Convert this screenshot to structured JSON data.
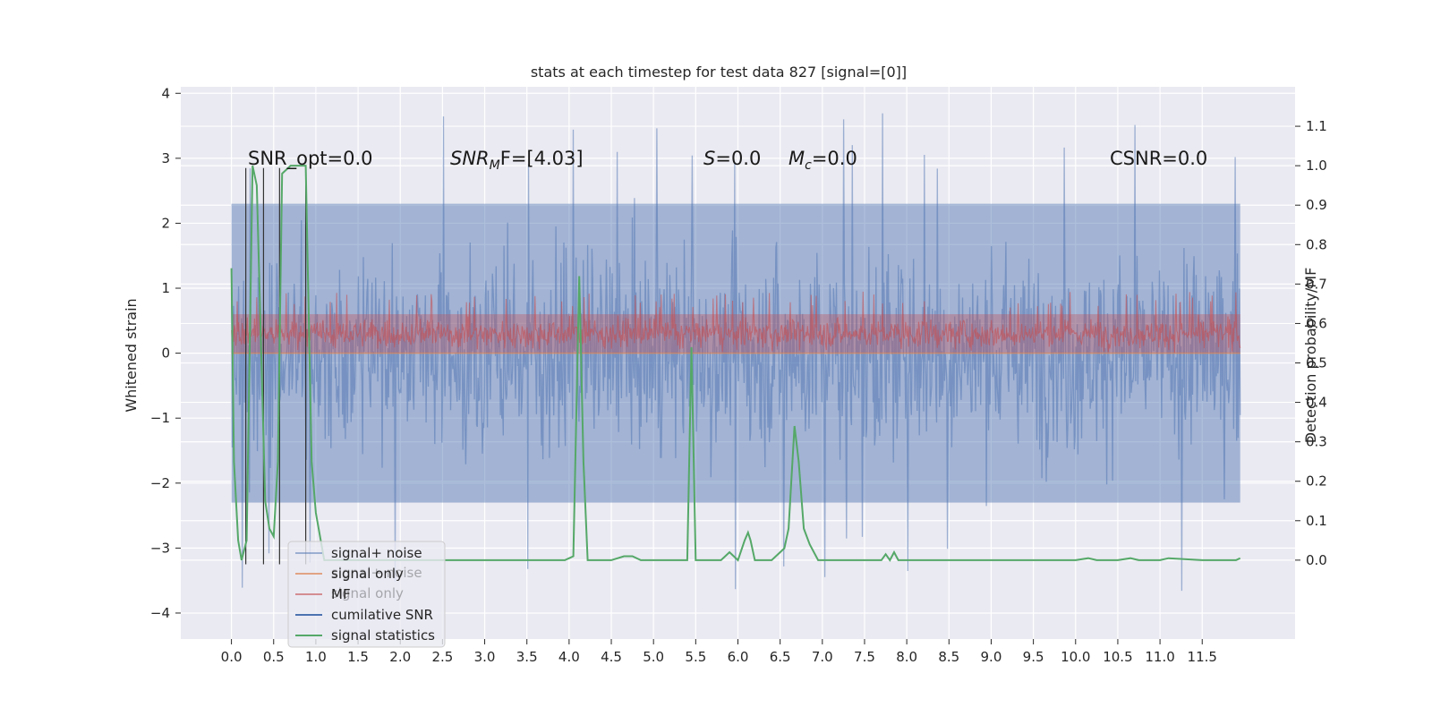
{
  "chart_data": {
    "type": "line",
    "title": "stats at each timestep for test data 827 [signal=[0]]",
    "xlabel": "",
    "ylabel": "Whitened strain",
    "y2label": "Detection probability/MF",
    "xlim": [
      -0.6,
      12.6
    ],
    "ylim": [
      -4.4,
      4.1
    ],
    "y2lim": [
      -0.2,
      1.2
    ],
    "x_ticks": [
      "0.0",
      "0.5",
      "1.0",
      "1.5",
      "2.0",
      "2.5",
      "3.0",
      "3.5",
      "4.0",
      "4.5",
      "5.0",
      "5.5",
      "6.0",
      "6.5",
      "7.0",
      "7.5",
      "8.0",
      "8.5",
      "9.0",
      "9.5",
      "10.0",
      "10.5",
      "11.0",
      "11.5"
    ],
    "y_ticks": [
      "4",
      "3",
      "2",
      "1",
      "0",
      "−1",
      "−2",
      "−3",
      "−4"
    ],
    "y2_ticks": [
      "1.1",
      "1.0",
      "0.9",
      "0.8",
      "0.7",
      "0.6",
      "0.5",
      "0.4",
      "0.3",
      "0.2",
      "0.1",
      "0.0"
    ],
    "grid": true,
    "legend_position": "lower-left",
    "legend": [
      "signal+ noise",
      "signal only",
      "MF",
      "cumilative SNR",
      "signal statistics"
    ],
    "legend_ghost": [
      "signal+ noise",
      "signal only"
    ],
    "colors": {
      "signal_noise": "#4c72b0",
      "signal_only": "#dd8452",
      "mf": "#c44e52",
      "cumulative_snr": "#4c72b0",
      "signal_statistics": "#55a868",
      "background": "#eaeaf2",
      "grid": "#ffffff"
    },
    "annotations": {
      "snr_opt": "SNR_opt=0.0",
      "snr_mf_base": "SNR",
      "snr_mf_sub": "M",
      "snr_mf_tail": "F=[4.03]",
      "s_base": "S",
      "s_tail": "=0.0",
      "mc_base": "M",
      "mc_sub": "c",
      "mc_tail": "=0.0",
      "csnr": "CSNR=0.0"
    },
    "series": [
      {
        "name": "signal+ noise",
        "axis": "left",
        "description_range": [
          -4.1,
          3.75
        ],
        "band": [
          -2.3,
          2.3
        ]
      },
      {
        "name": "MF",
        "axis": "left",
        "band": [
          0.0,
          0.6
        ]
      },
      {
        "name": "cumilative SNR",
        "axis": "left",
        "vertical_x": [
          0.17,
          0.38,
          0.57,
          0.88
        ],
        "range": [
          -3.25,
          2.85
        ]
      },
      {
        "name": "signal statistics",
        "axis": "right",
        "x": [
          0.0,
          0.03,
          0.08,
          0.12,
          0.18,
          0.25,
          0.3,
          0.4,
          0.45,
          0.5,
          0.55,
          0.6,
          0.65,
          0.7,
          0.8,
          0.88,
          0.95,
          1.0,
          1.1,
          1.3,
          2.0,
          3.0,
          3.95,
          4.05,
          4.12,
          4.17,
          4.22,
          4.3,
          4.5,
          4.65,
          4.75,
          4.85,
          5.0,
          5.3,
          5.4,
          5.45,
          5.5,
          5.6,
          5.8,
          5.9,
          6.0,
          6.08,
          6.12,
          6.15,
          6.2,
          6.3,
          6.4,
          6.5,
          6.55,
          6.6,
          6.67,
          6.72,
          6.78,
          6.85,
          6.95,
          7.5,
          7.7,
          7.75,
          7.8,
          7.85,
          7.9,
          8.0,
          9.0,
          10.0,
          10.15,
          10.25,
          10.5,
          10.65,
          10.75,
          11.0,
          11.1,
          11.5,
          11.9,
          11.95
        ],
        "values": [
          0.74,
          0.25,
          0.05,
          0.0,
          0.05,
          1.0,
          0.95,
          0.15,
          0.08,
          0.06,
          0.25,
          0.98,
          0.99,
          1.0,
          1.0,
          1.0,
          0.25,
          0.12,
          0.0,
          0.0,
          0.0,
          0.0,
          0.0,
          0.01,
          0.72,
          0.25,
          0.0,
          0.0,
          0.0,
          0.01,
          0.01,
          0.0,
          0.0,
          0.0,
          0.0,
          0.54,
          0.0,
          0.0,
          0.0,
          0.02,
          0.0,
          0.05,
          0.07,
          0.05,
          0.0,
          0.0,
          0.0,
          0.02,
          0.03,
          0.08,
          0.34,
          0.25,
          0.08,
          0.04,
          0.0,
          0.0,
          0.0,
          0.015,
          0.0,
          0.02,
          0.0,
          0.0,
          0.0,
          0.0,
          0.005,
          0.0,
          0.0,
          0.005,
          0.0,
          0.0,
          0.005,
          0.0,
          0.0,
          0.005
        ]
      }
    ]
  }
}
